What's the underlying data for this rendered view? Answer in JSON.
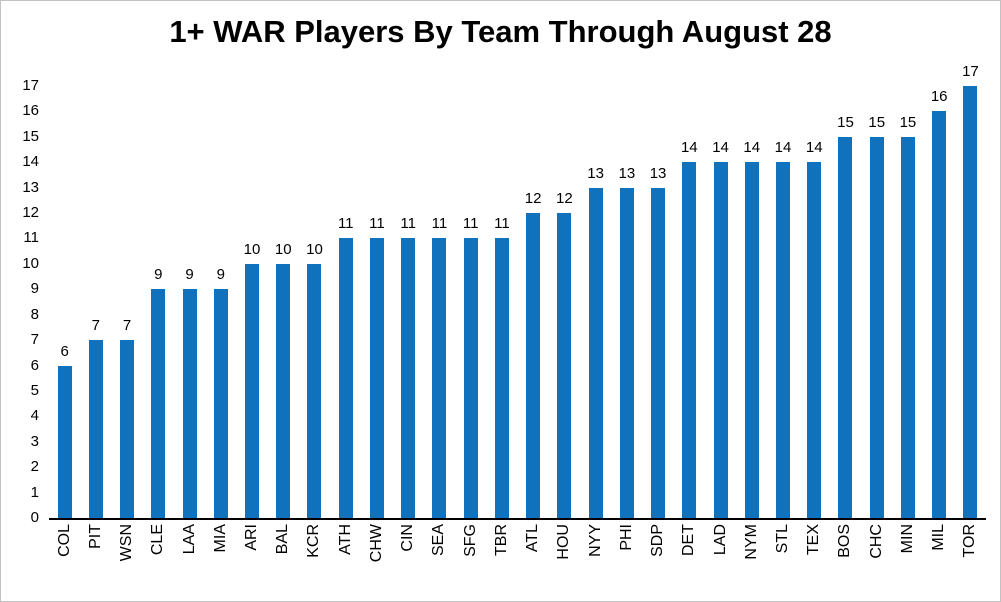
{
  "chart_data": {
    "type": "bar",
    "title": "1+ WAR Players By Team Through August 28",
    "categories": [
      "COL",
      "PIT",
      "WSN",
      "CLE",
      "LAA",
      "MIA",
      "ARI",
      "BAL",
      "KCR",
      "ATH",
      "CHW",
      "CIN",
      "SEA",
      "SFG",
      "TBR",
      "ATL",
      "HOU",
      "NYY",
      "PHI",
      "SDP",
      "DET",
      "LAD",
      "NYM",
      "STL",
      "TEX",
      "BOS",
      "CHC",
      "MIN",
      "MIL",
      "TOR"
    ],
    "values": [
      6,
      7,
      7,
      9,
      9,
      9,
      10,
      10,
      10,
      11,
      11,
      11,
      11,
      11,
      11,
      12,
      12,
      13,
      13,
      13,
      14,
      14,
      14,
      14,
      14,
      15,
      15,
      15,
      16,
      17
    ],
    "xlabel": "",
    "ylabel": "",
    "ylim": [
      0,
      17
    ],
    "ytick_step": 1,
    "grid": false,
    "legend_position": "none",
    "data_labels": true,
    "bar_color": "#1072BC",
    "axis_line_color": "#000000",
    "text_color": "#000000"
  }
}
